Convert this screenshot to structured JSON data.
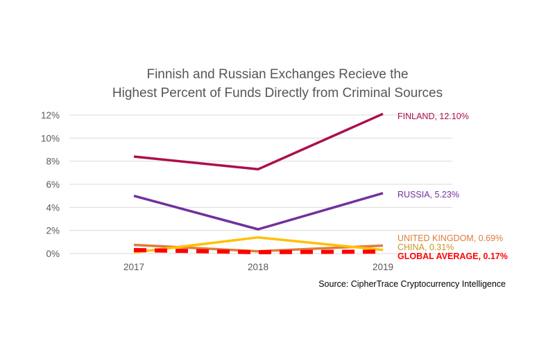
{
  "chart_data": {
    "type": "line",
    "title": [
      "Finnish and Russian Exchanges Recieve the",
      "Highest Percent of Funds Directly from Criminal Sources"
    ],
    "x": [
      "2017",
      "2018",
      "2019"
    ],
    "yticks": [
      "12%",
      "10%",
      "8%",
      "6%",
      "4%",
      "2%",
      "0%"
    ],
    "ylim": [
      0,
      12
    ],
    "grid": true,
    "series": [
      {
        "name": "FINLAND",
        "values": [
          8.4,
          7.3,
          12.1
        ],
        "color": "#ad0e4e",
        "end_label": "FINLAND, 12.10%"
      },
      {
        "name": "RUSSIA",
        "values": [
          5.0,
          2.1,
          5.23
        ],
        "color": "#7030a0",
        "end_label": "RUSSIA, 5.23%"
      },
      {
        "name": "UNITED KINGDOM",
        "values": [
          0.75,
          0.2,
          0.69
        ],
        "color": "#e07b39",
        "end_label": "UNITED KINGDOM, 0.69%"
      },
      {
        "name": "CHINA",
        "values": [
          0.1,
          1.4,
          0.31
        ],
        "color": "#ffc000",
        "end_label": "CHINA, 0.31%",
        "label_color": "#c8961e"
      },
      {
        "name": "GLOBAL AVERAGE",
        "values": [
          0.3,
          0.12,
          0.17
        ],
        "color": "#ff0000",
        "dashed": true,
        "bold_label": true,
        "end_label": "GLOBAL AVERAGE, 0.17%"
      }
    ],
    "source": "Source: CipherTrace Cryptocurrency Intelligence"
  }
}
